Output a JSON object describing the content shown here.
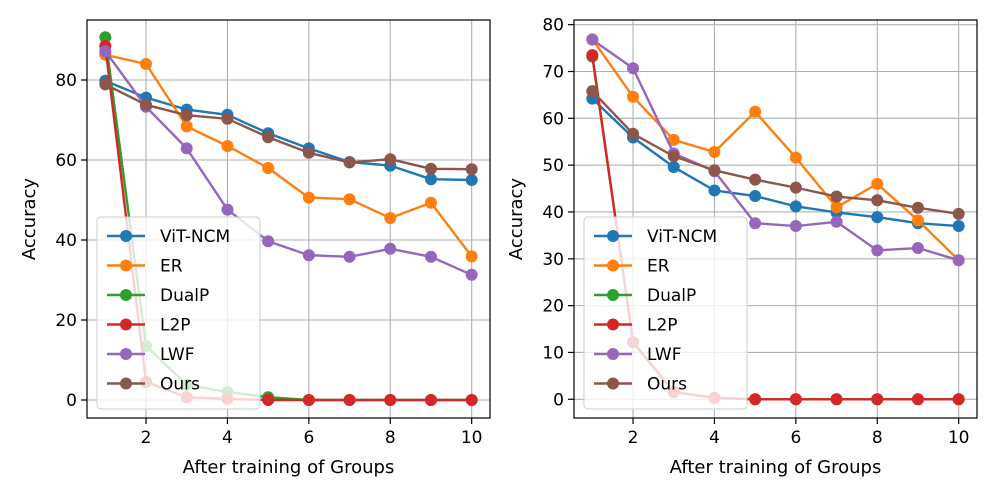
{
  "chart_data": [
    {
      "type": "line",
      "xlabel": "After training of Groups",
      "ylabel": "Accuracy",
      "x": [
        1,
        2,
        3,
        4,
        5,
        6,
        7,
        8,
        9,
        10
      ],
      "xlim": [
        0.55,
        10.45
      ],
      "ylim": [
        -4.5,
        95
      ],
      "xticks": [
        2,
        4,
        6,
        8,
        10
      ],
      "yticks": [
        0,
        20,
        40,
        60,
        80
      ],
      "grid": true,
      "legend_position": "lower-left",
      "series": [
        {
          "name": "ViT-NCM",
          "color": "#1f77b4",
          "values": [
            79.8,
            75.6,
            72.6,
            71.3,
            66.7,
            62.9,
            59.5,
            58.6,
            55.2,
            55.0
          ]
        },
        {
          "name": "ER",
          "color": "#ff7f0e",
          "values": [
            86.3,
            84.0,
            68.4,
            63.5,
            58.0,
            50.6,
            50.2,
            45.5,
            49.3,
            35.9
          ]
        },
        {
          "name": "DualP",
          "color": "#2ca02c",
          "values": [
            90.7,
            13.5,
            3.8,
            2.0,
            0.7,
            0.0,
            0.0,
            0.0,
            0.0,
            0.0
          ]
        },
        {
          "name": "L2P",
          "color": "#d62728",
          "values": [
            88.5,
            4.5,
            0.7,
            0.3,
            0.0,
            0.0,
            0.0,
            0.0,
            0.0,
            0.0
          ]
        },
        {
          "name": "LWF",
          "color": "#9467bd",
          "values": [
            87.2,
            73.3,
            62.9,
            47.6,
            39.7,
            36.2,
            35.8,
            37.8,
            35.8,
            31.3
          ]
        },
        {
          "name": "Ours",
          "color": "#8c564b",
          "values": [
            78.9,
            73.8,
            71.2,
            70.3,
            65.7,
            61.8,
            59.4,
            60.2,
            57.8,
            57.7
          ]
        }
      ]
    },
    {
      "type": "line",
      "xlabel": "After training of Groups",
      "ylabel": "Accuracy",
      "x": [
        1,
        2,
        3,
        4,
        5,
        6,
        7,
        8,
        9,
        10
      ],
      "xlim": [
        0.55,
        10.45
      ],
      "ylim": [
        -4.0,
        81.0
      ],
      "xticks": [
        2,
        4,
        6,
        8,
        10
      ],
      "yticks": [
        0,
        10,
        20,
        30,
        40,
        50,
        60,
        70,
        80
      ],
      "grid": true,
      "legend_position": "lower-left",
      "series": [
        {
          "name": "ViT-NCM",
          "color": "#1f77b4",
          "values": [
            64.2,
            55.9,
            49.6,
            44.6,
            43.4,
            41.2,
            39.9,
            38.9,
            37.6,
            37.0
          ]
        },
        {
          "name": "ER",
          "color": "#ff7f0e",
          "values": [
            76.9,
            64.6,
            55.4,
            52.8,
            61.4,
            51.6,
            41.0,
            46.0,
            38.2,
            29.7
          ]
        },
        {
          "name": "DualP",
          "color": "#2ca02c",
          "values": [
            73.2,
            12.2,
            1.5,
            0.3,
            0.0,
            0.0,
            0.0,
            0.0,
            0.0,
            0.0
          ]
        },
        {
          "name": "L2P",
          "color": "#d62728",
          "values": [
            73.5,
            12.2,
            1.6,
            0.3,
            0.0,
            0.0,
            0.0,
            0.0,
            0.0,
            0.0
          ]
        },
        {
          "name": "LWF",
          "color": "#9467bd",
          "values": [
            76.8,
            70.7,
            52.5,
            48.7,
            37.6,
            37.0,
            37.9,
            31.8,
            32.3,
            29.7
          ]
        },
        {
          "name": "Ours",
          "color": "#8c564b",
          "values": [
            65.8,
            56.7,
            51.9,
            48.9,
            46.9,
            45.2,
            43.3,
            42.5,
            40.9,
            39.6
          ]
        }
      ]
    }
  ]
}
